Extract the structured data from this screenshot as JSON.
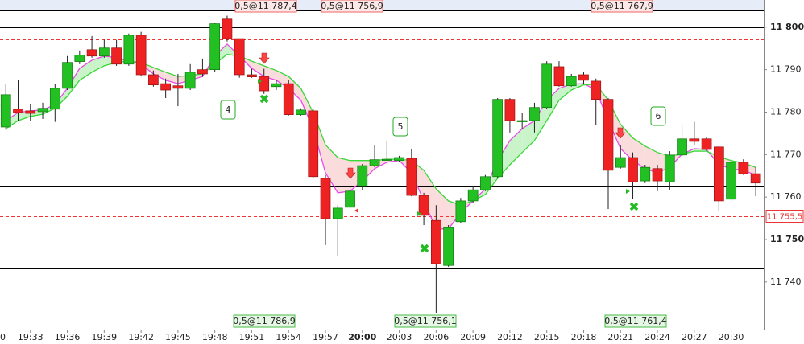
{
  "chart_data": {
    "type": "candlestick",
    "categories": [
      "0",
      null,
      null,
      "19:33",
      null,
      null,
      "19:36",
      null,
      null,
      "19:39",
      null,
      null,
      "19:42",
      null,
      null,
      "19:45",
      null,
      null,
      "19:48",
      null,
      null,
      "19:51",
      null,
      null,
      "19:54",
      null,
      null,
      "19:57",
      null,
      null,
      "20:00",
      null,
      null,
      "20:03",
      null,
      null,
      "20:06",
      null,
      null,
      "20:09",
      null,
      null,
      "20:12",
      null,
      null,
      "20:15",
      null,
      null,
      "20:18",
      null,
      null,
      "20:21",
      null,
      null,
      "20:24",
      null,
      null,
      "20:27",
      null,
      null,
      "20:30",
      null,
      null
    ],
    "open": [
      null,
      11776.5,
      11780.7,
      11780.3,
      11780.1,
      11780.7,
      11785.6,
      11791.9,
      11794.7,
      11793.2,
      11795.1,
      11791.3,
      11798.1,
      11788.8,
      11786.7,
      11786.2,
      11785.6,
      11790.0,
      11790.0,
      11801.9,
      11797.3,
      11788.8,
      11788.4,
      11786.0,
      11786.7,
      11779.4,
      11780.3,
      11764.4,
      11754.9,
      11757.6,
      11762.5,
      11767.4,
      11768.8,
      11768.6,
      11769.1,
      11760.4,
      11754.5,
      11743.9,
      11754.2,
      11759.1,
      11761.7,
      11764.8,
      11783.0,
      11777.8,
      11778.0,
      11781.1,
      11790.7,
      11786.2,
      11788.8,
      11787.3,
      11783.0,
      11767.0,
      11769.3,
      11763.8,
      11766.7,
      11763.6,
      11769.9,
      11773.7,
      11773.7,
      11771.8,
      11759.5,
      11768.2,
      11765.5
    ],
    "high": [
      null,
      11786.6,
      11787.5,
      11781.8,
      11782.2,
      11786.6,
      11793.2,
      11794.5,
      11797.9,
      11797.0,
      11797.0,
      11798.5,
      11798.9,
      11789.8,
      11787.9,
      11789.0,
      11791.3,
      11792.6,
      11801.1,
      11802.7,
      11797.3,
      11790.2,
      11790.2,
      11787.5,
      11787.5,
      11780.9,
      11780.9,
      11765.2,
      11758.1,
      11762.5,
      11767.8,
      11772.3,
      11773.1,
      11769.7,
      11771.4,
      11761.0,
      11758.1,
      11753.4,
      11759.8,
      11762.5,
      11765.2,
      11783.3,
      11783.3,
      11779.9,
      11782.2,
      11792.0,
      11792.0,
      11789.0,
      11789.4,
      11787.9,
      11783.3,
      11772.3,
      11770.5,
      11767.6,
      11767.6,
      11770.8,
      11776.9,
      11777.7,
      11774.2,
      11772.0,
      11768.6,
      11768.9,
      11767.0
    ],
    "low": [
      null,
      11775.8,
      11778.0,
      11778.0,
      11778.4,
      11777.7,
      11785.2,
      11791.3,
      11792.8,
      11792.8,
      11790.9,
      11790.9,
      11788.4,
      11786.0,
      11783.3,
      11781.4,
      11785.2,
      11788.3,
      11789.4,
      11796.6,
      11788.1,
      11788.1,
      11784.3,
      11785.2,
      11779.2,
      11779.2,
      11764.4,
      11748.7,
      11746.2,
      11756.8,
      11761.7,
      11767.0,
      11768.6,
      11768.2,
      11760.2,
      11753.4,
      11732.6,
      11743.6,
      11753.8,
      11758.7,
      11761.4,
      11764.4,
      11775.2,
      11776.1,
      11775.2,
      11780.7,
      11786.0,
      11786.0,
      11786.7,
      11776.9,
      11757.2,
      11766.7,
      11759.5,
      11763.3,
      11761.4,
      11761.7,
      11769.5,
      11772.3,
      11770.8,
      11756.8,
      11759.1,
      11765.2,
      11760.2
    ],
    "close": [
      null,
      11784.1,
      11779.9,
      11779.7,
      11780.9,
      11785.6,
      11791.7,
      11793.4,
      11793.2,
      11795.1,
      11791.3,
      11798.1,
      11788.8,
      11786.4,
      11785.2,
      11785.6,
      11789.4,
      11789.0,
      11800.8,
      11797.3,
      11788.8,
      11788.3,
      11785.0,
      11786.7,
      11779.4,
      11780.5,
      11764.8,
      11754.9,
      11757.4,
      11761.4,
      11767.4,
      11768.8,
      11768.9,
      11769.3,
      11760.4,
      11755.7,
      11744.3,
      11752.8,
      11759.1,
      11761.7,
      11764.8,
      11783.0,
      11778.0,
      11778.0,
      11781.1,
      11791.3,
      11786.2,
      11788.4,
      11787.5,
      11783.0,
      11766.3,
      11769.3,
      11763.6,
      11767.0,
      11763.8,
      11769.9,
      11773.7,
      11773.1,
      11771.2,
      11759.1,
      11768.2,
      11765.5,
      11763.3
    ],
    "up_color": "#22c022",
    "down_color": "#ee2222",
    "overlays": [
      {
        "color": "#e84ce8",
        "values": [
          null,
          11778.0,
          11779.9,
          11780.3,
          11780.5,
          11781.8,
          11785.6,
          11790.3,
          11792.2,
          11793.2,
          11792.8,
          11792.0,
          11791.3,
          11789.0,
          11787.5,
          11786.7,
          11787.5,
          11788.4,
          11793.2,
          11796.0,
          11793.2,
          11790.3,
          11788.4,
          11787.5,
          11785.6,
          11782.8,
          11776.1,
          11765.7,
          11761.0,
          11761.4,
          11763.8,
          11766.7,
          11768.2,
          11768.6,
          11765.7,
          11759.1,
          11752.5,
          11752.5,
          11756.3,
          11759.1,
          11761.9,
          11768.6,
          11773.3,
          11776.1,
          11778.0,
          11782.8,
          11785.6,
          11786.6,
          11786.7,
          11785.2,
          11778.0,
          11771.4,
          11768.6,
          11766.7,
          11765.7,
          11767.0,
          11770.1,
          11771.4,
          11771.2,
          11767.6,
          11766.7,
          11766.3,
          11765.2
        ]
      },
      {
        "color": "#38d838",
        "values": [
          null,
          11776.1,
          11778.0,
          11779.0,
          11779.5,
          11780.9,
          11783.7,
          11787.5,
          11789.4,
          11790.9,
          11791.7,
          11792.0,
          11791.7,
          11790.5,
          11789.4,
          11788.4,
          11788.6,
          11789.0,
          11791.3,
          11793.6,
          11793.2,
          11792.0,
          11790.9,
          11789.8,
          11788.4,
          11785.6,
          11779.9,
          11772.3,
          11769.3,
          11768.6,
          11768.6,
          11768.6,
          11768.9,
          11768.9,
          11768.6,
          11766.3,
          11761.9,
          11759.1,
          11758.1,
          11759.1,
          11760.6,
          11764.4,
          11767.6,
          11770.5,
          11773.3,
          11778.0,
          11782.8,
          11785.2,
          11786.4,
          11786.6,
          11782.8,
          11777.1,
          11773.9,
          11772.0,
          11770.5,
          11769.7,
          11770.1,
          11770.8,
          11770.8,
          11769.5,
          11768.6,
          11768.0,
          11767.0
        ]
      }
    ],
    "ylim": [
      11728.8,
      11806.4
    ],
    "yticks": [
      {
        "value": 11800,
        "label": "11 800",
        "bold": true
      },
      {
        "value": 11790,
        "label": "11 790"
      },
      {
        "value": 11780,
        "label": "11 780"
      },
      {
        "value": 11770,
        "label": "11 770"
      },
      {
        "value": 11760,
        "label": "11 760"
      },
      {
        "value": 11750,
        "label": "11 750",
        "bold": true
      },
      {
        "value": 11740,
        "label": "11 740"
      }
    ],
    "levels": [
      11804,
      11800,
      11762.5,
      11750,
      11743.2
    ],
    "dashed_levels": [
      11797.2,
      {
        "value": 11755.5,
        "label": "11 755,5"
      }
    ],
    "orders_top": [
      "0,5@11 787,4",
      "0,5@11 756,9",
      "0,5@11 767,9"
    ],
    "orders_bottom": [
      "0,5@11 786,9",
      "0,5@11 756,1",
      "0,5@11 761,4"
    ],
    "wave_labels": [
      "4",
      "5",
      "6"
    ]
  }
}
